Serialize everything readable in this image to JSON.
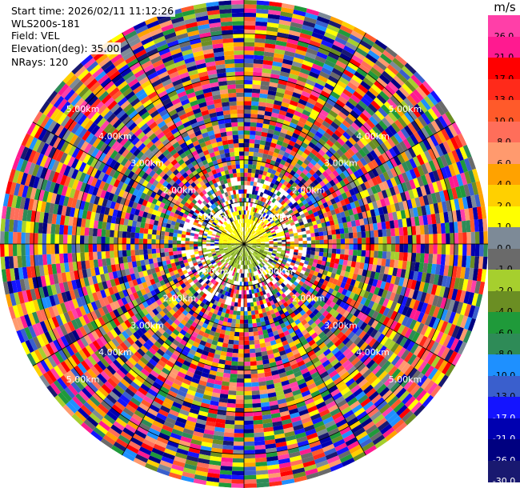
{
  "header": {
    "start_time": "Start time: 2026/02/11 11:12:26",
    "instrument": "WLS200s-181",
    "field": "Field: VEL",
    "elevation": "Elevation(deg): 35.00",
    "nrays": "NRays: 120"
  },
  "colorbar": {
    "unit": "m/s",
    "labels": [
      "26.0",
      "21.0",
      "17.0",
      "13.0",
      "10.0",
      "8.0",
      "6.0",
      "4.0",
      "2.0",
      "1.0",
      "0.0",
      "-1.0",
      "-2.0",
      "-4.0",
      "-6.0",
      "-8.0",
      "-10.0",
      "-13.0",
      "-17.0",
      "-21.0",
      "-26.0",
      "-30.0"
    ],
    "colors": [
      "#ff3fa8",
      "#ff1a90",
      "#ff0000",
      "#ff2a1a",
      "#ff5a2a",
      "#ff6e5a",
      "#ff9a6e",
      "#ffa200",
      "#ffd000",
      "#ffff00",
      "#7d8a97",
      "#6a6a6a",
      "#a6cf2e",
      "#6b8e23",
      "#1f9a3a",
      "#2e8b57",
      "#1e90ff",
      "#3a5fcd",
      "#1414ff",
      "#0000b0",
      "#000080",
      "#191970"
    ],
    "light_text_labels": [
      "-17.0",
      "-21.0",
      "-26.0",
      "-30.0"
    ]
  },
  "chart_data": {
    "type": "heatmap",
    "projection": "polar PPI",
    "field": "VEL",
    "unit": "m/s",
    "elevation_deg": 35.0,
    "n_rays": 120,
    "range_ring_labels": [
      "1.00km",
      "2.00km",
      "3.00km",
      "4.00km",
      "5.00km"
    ],
    "range_rings_km": [
      1,
      2,
      3,
      4,
      5
    ],
    "max_range_km": 5.8,
    "description_of_values": "Near range (<0.8 km) north half ~2 to 4 m/s (yellow), south half ~-1 to -2 m/s (green); beyond ~1 km values are noisy across the full -30 to 26 m/s range."
  }
}
